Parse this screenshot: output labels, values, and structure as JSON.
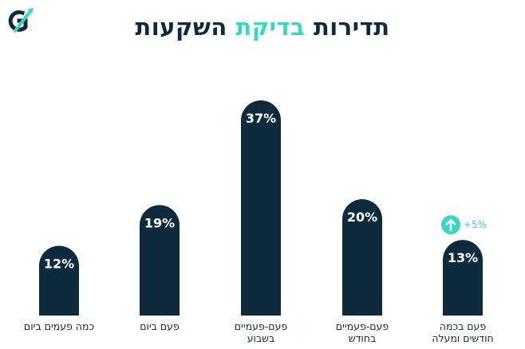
{
  "title": {
    "part1": "תדירות",
    "part2": "בדיקת",
    "part3": "השקעות"
  },
  "logo": {
    "icon": "brand-logo-icon",
    "color_dark": "#0f2a3c",
    "color_accent": "#3ad6c2"
  },
  "colors": {
    "bar": "#0f2a3c",
    "accent": "#3ad6c2",
    "label": "#ffffff",
    "category": "#0f2a3c"
  },
  "annotation": {
    "icon": "arrow-up-icon",
    "text": "+5%",
    "category_index": 4
  },
  "chart_data": {
    "type": "bar",
    "title": "תדירות בדיקת השקעות",
    "categories": [
      [
        "כמה פעמים ביום"
      ],
      [
        "פעם ביום"
      ],
      [
        "פעם-פעמיים",
        "בשבוע"
      ],
      [
        "פעם-פעמיים",
        "בחודש"
      ],
      [
        "פעם בכמה",
        "חודשים ומעלה"
      ]
    ],
    "values": [
      12,
      19,
      37,
      20,
      13
    ],
    "value_labels": [
      "12%",
      "19%",
      "37%",
      "20%",
      "13%"
    ],
    "unit": "%",
    "ylim": [
      0,
      40
    ],
    "grid": false,
    "legend": "none"
  }
}
